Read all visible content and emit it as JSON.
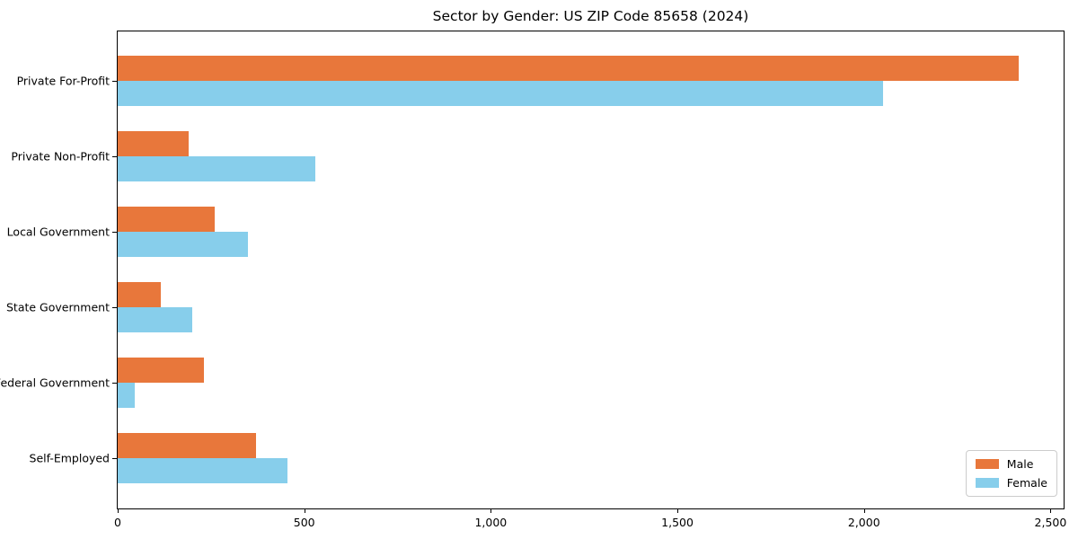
{
  "chart_data": {
    "type": "bar",
    "orientation": "horizontal",
    "title": "Sector by Gender: US ZIP Code 85658 (2024)",
    "categories": [
      "Private For-Profit",
      "Private Non-Profit",
      "Local Government",
      "State Government",
      "Federal Government",
      "Self-Employed"
    ],
    "series": [
      {
        "name": "Male",
        "color": "#e8773b",
        "values": [
          2415,
          190,
          260,
          115,
          230,
          370
        ]
      },
      {
        "name": "Female",
        "color": "#87ceeb",
        "values": [
          2050,
          530,
          350,
          200,
          45,
          455
        ]
      }
    ],
    "xlabel": "",
    "ylabel": "",
    "xlim": [
      0,
      2535
    ],
    "x_ticks": [
      {
        "value": 0,
        "label": "0"
      },
      {
        "value": 500,
        "label": "500"
      },
      {
        "value": 1000,
        "label": "1,000"
      },
      {
        "value": 1500,
        "label": "1,500"
      },
      {
        "value": 2000,
        "label": "2,000"
      },
      {
        "value": 2500,
        "label": "2,500"
      }
    ],
    "grid": false,
    "legend": {
      "position": "lower right"
    },
    "colors": {
      "axis": "#000000",
      "legend_border": "#cccccc",
      "background": "#ffffff"
    }
  }
}
